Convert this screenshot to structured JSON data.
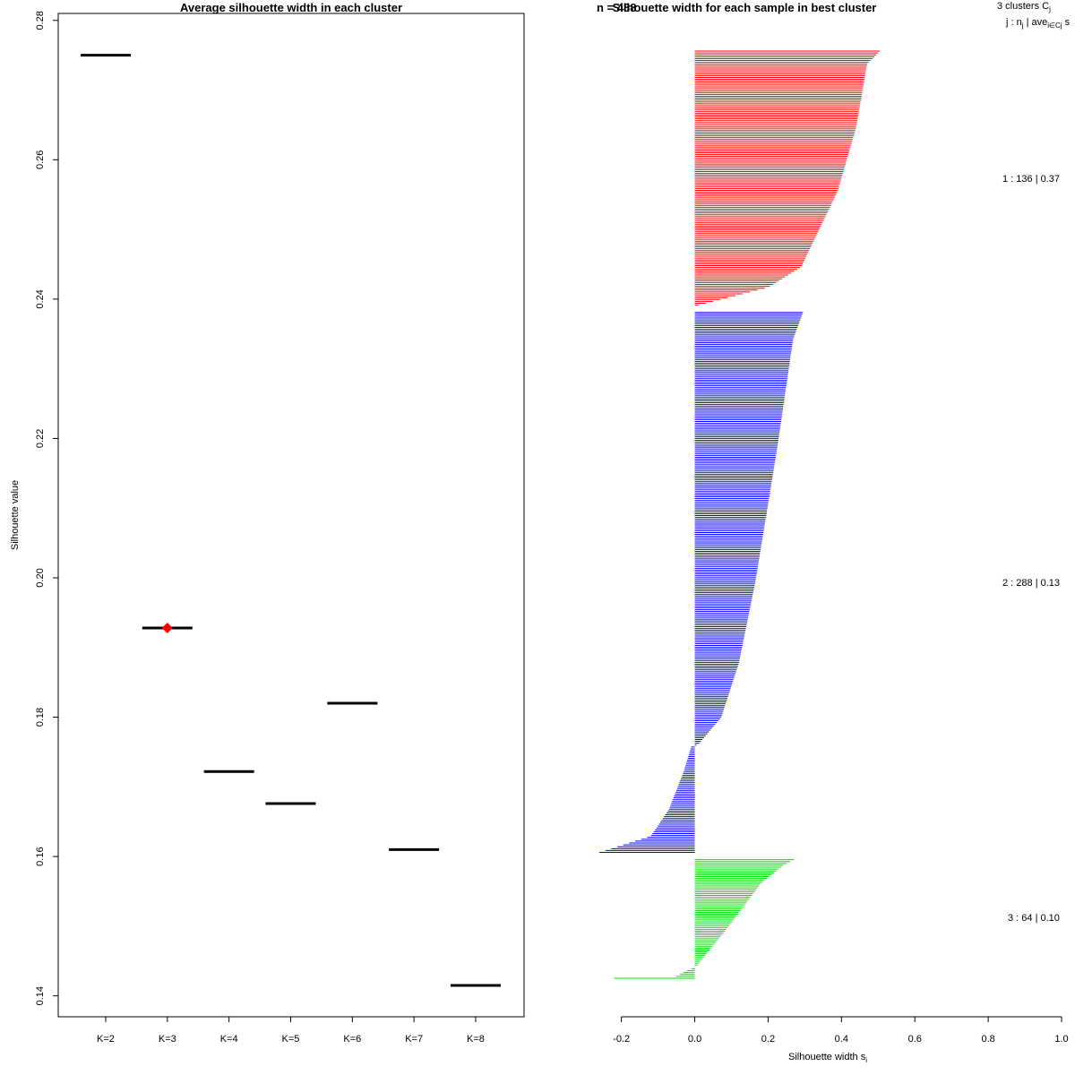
{
  "chart_data": [
    {
      "type": "scatter",
      "title": "Average silhouette width in each cluster",
      "xlabel": "",
      "ylabel": "Silhouette value",
      "ylim": [
        0.137,
        0.281
      ],
      "yticks": [
        0.14,
        0.16,
        0.18,
        0.2,
        0.22,
        0.24,
        0.26,
        0.28
      ],
      "ytick_labels": [
        "0.14",
        "0.16",
        "0.18",
        "0.20",
        "0.22",
        "0.24",
        "0.26",
        "0.28"
      ],
      "categories": [
        "K=2",
        "K=3",
        "K=4",
        "K=5",
        "K=6",
        "K=7",
        "K=8"
      ],
      "values": [
        0.275,
        0.1928,
        0.1722,
        0.1676,
        0.182,
        0.161,
        0.1415
      ],
      "best": {
        "category": "K=3",
        "value": 0.1928,
        "color": "#ff0000"
      },
      "line_color": "#000000"
    },
    {
      "type": "bar",
      "orientation": "horizontal",
      "title": "Silhouette width for each sample in best cluster",
      "title_overlap_fragment": "n = 488",
      "xlabel": "Silhouette width s",
      "xlabel_subscript": "i",
      "xlim": [
        -0.27,
        1.0
      ],
      "xticks": [
        -0.2,
        0.0,
        0.2,
        0.4,
        0.6,
        0.8,
        1.0
      ],
      "xtick_labels": [
        "-0.2",
        "0.0",
        "0.2",
        "0.4",
        "0.6",
        "0.8",
        "1.0"
      ],
      "legend_header_1": "3  clusters  C",
      "legend_header_1_sub": "j",
      "legend_header_2": "j :  n",
      "legend_header_2_sub": "j",
      "legend_header_2_mid": " | ave",
      "legend_header_2_sub2": "i∈Cj",
      "legend_header_2_end": "  s",
      "series": [
        {
          "name": "1",
          "n": 136,
          "label": "1 :  136  |  0.37",
          "color": "#ff0000",
          "profile": [
            [
              0,
              0.505
            ],
            [
              0.05,
              0.47
            ],
            [
              0.3,
              0.44
            ],
            [
              0.55,
              0.39
            ],
            [
              0.7,
              0.34
            ],
            [
              0.85,
              0.29
            ],
            [
              0.93,
              0.2
            ],
            [
              1.0,
              0.01
            ]
          ]
        },
        {
          "name": "2",
          "n": 288,
          "label": "2 :  288  |  0.13",
          "color": "#0000ff",
          "profile": [
            [
              0,
              0.295
            ],
            [
              0.05,
              0.268
            ],
            [
              0.25,
              0.225
            ],
            [
              0.5,
              0.165
            ],
            [
              0.65,
              0.12
            ],
            [
              0.75,
              0.072
            ],
            [
              0.8,
              0.01
            ],
            [
              0.805,
              -0.01
            ],
            [
              0.85,
              -0.03
            ],
            [
              0.92,
              -0.07
            ],
            [
              0.97,
              -0.12
            ],
            [
              1.0,
              -0.26
            ]
          ]
        },
        {
          "name": "3",
          "n": 64,
          "label": "3 :  64  |  0.10",
          "color": "#00e000",
          "profile": [
            [
              0,
              0.27
            ],
            [
              0.05,
              0.24
            ],
            [
              0.2,
              0.18
            ],
            [
              0.45,
              0.12
            ],
            [
              0.65,
              0.07
            ],
            [
              0.8,
              0.03
            ],
            [
              0.9,
              0.005
            ],
            [
              0.95,
              -0.03
            ],
            [
              0.985,
              -0.05
            ],
            [
              1.0,
              -0.22
            ]
          ]
        }
      ]
    }
  ]
}
